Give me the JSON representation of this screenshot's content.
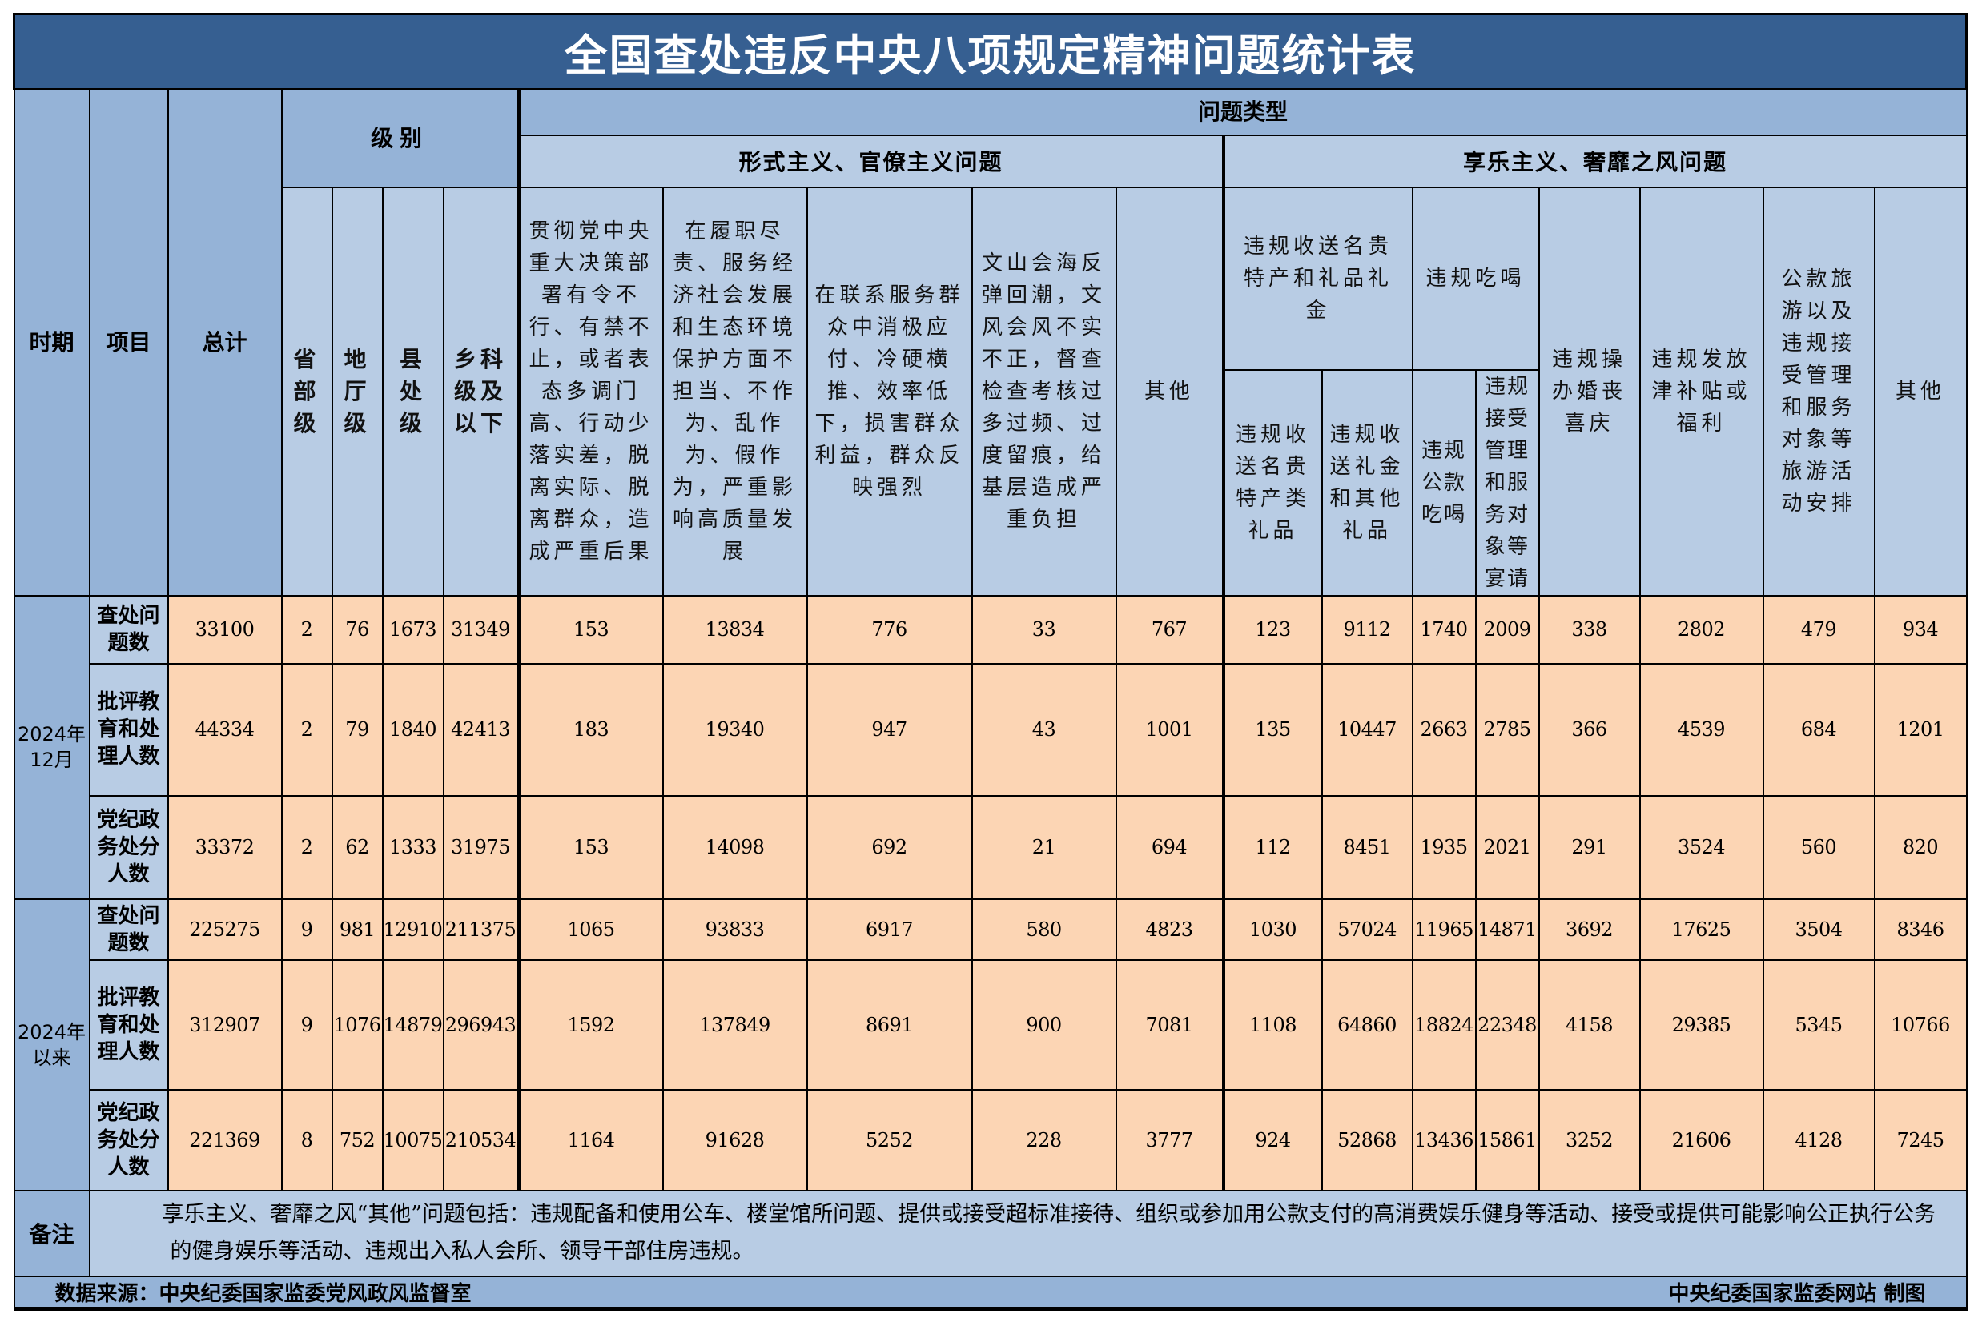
{
  "title": "全国查处违反中央八项规定精神问题统计表",
  "header": {
    "period": "时期",
    "item": "项目",
    "total": "总计",
    "level_group": "级别",
    "type_group": "问题类型",
    "formalism": "形式主义、官僚主义问题",
    "hedonism": "享乐主义、奢靡之风问题",
    "levels": [
      "省部级",
      "地厅级",
      "县处级",
      "乡科级及以下"
    ],
    "formalism_cols": [
      "贯彻党中央重大决策部署有令不行、有禁不止，或者表态多调门高、行动少落实差，脱离实际、脱离群众，造成严重后果",
      "在履职尽责、服务经济社会发展和生态环境保护方面不担当、不作为、乱作为、假作为，严重影响高质量发展",
      "在联系服务群众中消极应付、冷硬横推、效率低下，损害群众利益，群众反映强烈",
      "文山会海反弹回潮，文风会风不实不正，督查检查考核过多过频、过度留痕，给基层造成严重负担",
      "其他"
    ],
    "gifts_group": "违规收送名贵特产和礼品礼金",
    "gifts_cols": [
      "违规收送名贵特产类礼品",
      "违规收送礼金和其他礼品"
    ],
    "dining_group": "违规吃喝",
    "dining_cols": [
      "违规公款吃喝",
      "违规接受管理和服务对象等宴请"
    ],
    "hedonism_cols": [
      "违规操办婚丧喜庆",
      "违规发放津补贴或福利",
      "公款旅游以及违规接受管理和服务对象等旅游活动安排",
      "其他"
    ]
  },
  "periods": [
    {
      "label": "2024年12月",
      "rows": [
        {
          "item": "查处问题数",
          "values": [
            "33100",
            "2",
            "76",
            "1673",
            "31349",
            "153",
            "13834",
            "776",
            "33",
            "767",
            "123",
            "9112",
            "1740",
            "2009",
            "338",
            "2802",
            "479",
            "934"
          ]
        },
        {
          "item": "批评教育和处理人数",
          "values": [
            "44334",
            "2",
            "79",
            "1840",
            "42413",
            "183",
            "19340",
            "947",
            "43",
            "1001",
            "135",
            "10447",
            "2663",
            "2785",
            "366",
            "4539",
            "684",
            "1201"
          ]
        },
        {
          "item": "党纪政务处分人数",
          "values": [
            "33372",
            "2",
            "62",
            "1333",
            "31975",
            "153",
            "14098",
            "692",
            "21",
            "694",
            "112",
            "8451",
            "1935",
            "2021",
            "291",
            "3524",
            "560",
            "820"
          ]
        }
      ]
    },
    {
      "label": "2024年以来",
      "rows": [
        {
          "item": "查处问题数",
          "values": [
            "225275",
            "9",
            "981",
            "12910",
            "211375",
            "1065",
            "93833",
            "6917",
            "580",
            "4823",
            "1030",
            "57024",
            "11965",
            "14871",
            "3692",
            "17625",
            "3504",
            "8346"
          ]
        },
        {
          "item": "批评教育和处理人数",
          "values": [
            "312907",
            "9",
            "1076",
            "14879",
            "296943",
            "1592",
            "137849",
            "8691",
            "900",
            "7081",
            "1108",
            "64860",
            "18824",
            "22348",
            "4158",
            "29385",
            "5345",
            "10766"
          ]
        },
        {
          "item": "党纪政务处分人数",
          "values": [
            "221369",
            "8",
            "752",
            "10075",
            "210534",
            "1164",
            "91628",
            "5252",
            "228",
            "3777",
            "924",
            "52868",
            "13436",
            "15861",
            "3252",
            "21606",
            "4128",
            "7245"
          ]
        }
      ]
    }
  ],
  "note": {
    "label": "备注",
    "text": "享乐主义、奢靡之风“其他”问题包括：违规配备和使用公车、楼堂馆所问题、提供或接受超标准接待、组织或参加用公款支付的高消费娱乐健身等活动、接受或提供可能影响公正执行公务的健身娱乐等活动、违规出入私人会所、领导干部住房违规。"
  },
  "footer": {
    "source": "数据来源：中央纪委国家监委党风政风监督室",
    "credit": "中央纪委国家监委网站 制图"
  },
  "colors": {
    "title_bg": "#365f91",
    "header_bg": "#b8cce4",
    "side_bg": "#95b3d7",
    "data_bg": "#fcd5b4"
  }
}
